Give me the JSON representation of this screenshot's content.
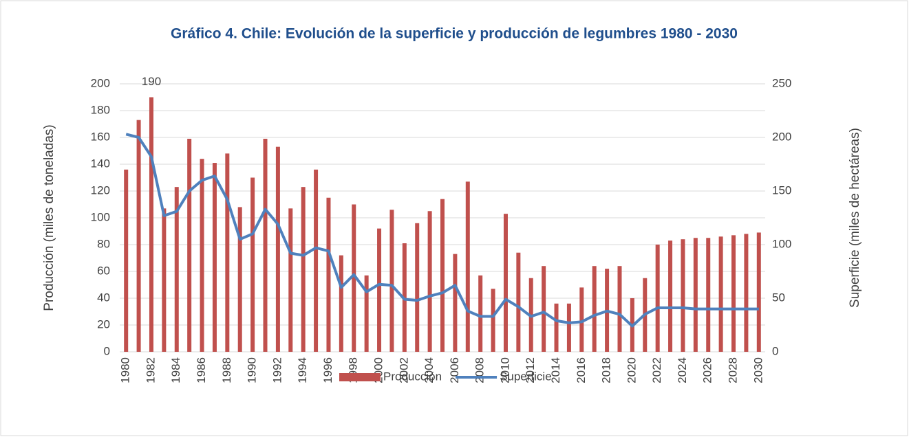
{
  "chart_data": {
    "type": "bar_line",
    "title": "Gráfico 4. Chile: Evolución de la superficie y producción de legumbres 1980 - 2030",
    "y_label": "Producción (miles de toneladas)",
    "y2_label": "Superficie (miles de hectáreas)",
    "categories": [
      "1980",
      null,
      "1982",
      null,
      "1984",
      null,
      "1986",
      null,
      "1988",
      null,
      "1990",
      null,
      "1992",
      null,
      "1994",
      null,
      "1996",
      null,
      "1998",
      null,
      "2000",
      null,
      "2002",
      null,
      "2004",
      null,
      "2006",
      null,
      "2008",
      null,
      "2010",
      null,
      "2012",
      null,
      "2014",
      null,
      "2016",
      null,
      "2018",
      null,
      "2020",
      null,
      "2022",
      null,
      "2024",
      null,
      "2026",
      null,
      "2028",
      null,
      "2030"
    ],
    "series": [
      {
        "name": "Producción",
        "type": "bar",
        "color": "#c0504d",
        "values": [
          136,
          173,
          190,
          107,
          123,
          159,
          144,
          141,
          148,
          108,
          130,
          159,
          153,
          107,
          123,
          136,
          115,
          72,
          110,
          57,
          92,
          106,
          81,
          96,
          105,
          114,
          73,
          127,
          57,
          47,
          103,
          74,
          55,
          64,
          36,
          36,
          48,
          64,
          62,
          64,
          40,
          55,
          80,
          83,
          84,
          85,
          85,
          86,
          87,
          88,
          89
        ],
        "value_labels": [
          null,
          null,
          "190",
          null,
          null,
          null,
          null,
          null,
          null,
          null,
          null,
          null,
          null,
          null,
          null,
          null,
          null,
          null,
          null,
          null,
          null,
          null,
          null,
          null,
          null,
          null,
          null,
          null,
          null,
          null,
          null,
          null,
          null,
          null,
          null,
          null,
          null,
          null,
          null,
          null,
          null,
          null,
          null,
          null,
          null,
          null,
          null,
          null,
          null,
          null,
          null
        ]
      },
      {
        "name": "Superficie",
        "type": "line",
        "axis": "y2",
        "color": "#4f81bd",
        "values": [
          203,
          200,
          182,
          127,
          131,
          150,
          160,
          164,
          142,
          105,
          110,
          133,
          119,
          92,
          90,
          97,
          94,
          60,
          72,
          56,
          63,
          62,
          49,
          48,
          52,
          55,
          62,
          38,
          33,
          33,
          49,
          42,
          33,
          37,
          29,
          27,
          28,
          34,
          38,
          35,
          24,
          35,
          41,
          41,
          41,
          40,
          40,
          40,
          40,
          40,
          40
        ]
      }
    ],
    "ylim": [
      0,
      200
    ],
    "yticks": [
      0,
      20,
      40,
      60,
      80,
      100,
      120,
      140,
      160,
      180,
      200
    ],
    "y2lim": [
      0,
      250
    ],
    "y2ticks": [
      0,
      50,
      100,
      150,
      200,
      250
    ],
    "grid": true,
    "legend": "bottom"
  }
}
